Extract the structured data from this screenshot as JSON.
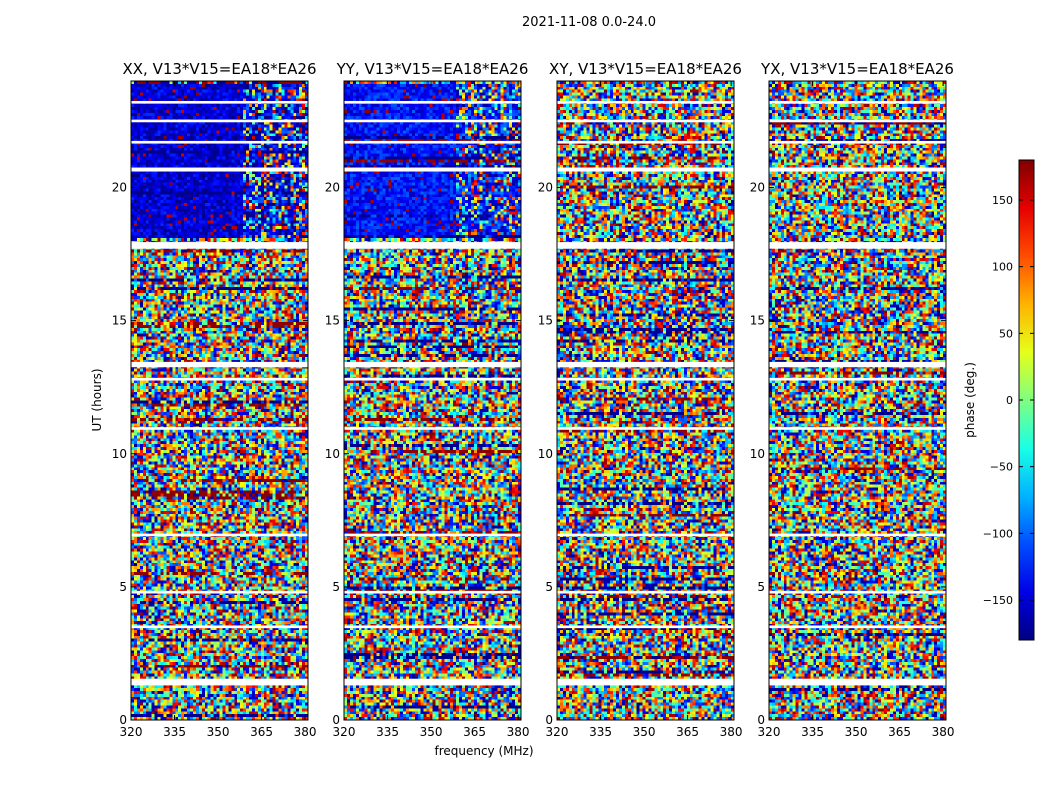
{
  "figure": {
    "suptitle": "2021-11-08 0.0-24.0"
  },
  "chart_data": {
    "type": "heatmap",
    "xlabel": "frequency (MHz)",
    "ylabel": "UT (hours)",
    "xlim": [
      320,
      381
    ],
    "ylim": [
      0,
      24
    ],
    "xticks": [
      320,
      335,
      350,
      365,
      380
    ],
    "yticks": [
      0,
      5,
      10,
      15,
      20
    ],
    "panels": [
      {
        "title": "XX, V13*V15=EA18*EA26",
        "pol": "XX",
        "coherent_phase_deg": -150,
        "coherent_ut_range": [
          18.1,
          23.9
        ]
      },
      {
        "title": "YY, V13*V15=EA18*EA26",
        "pol": "YY",
        "coherent_phase_deg": -130,
        "coherent_ut_range": [
          18.1,
          23.9
        ]
      },
      {
        "title": "XY, V13*V15=EA18*EA26",
        "pol": "XY"
      },
      {
        "title": "YX, V13*V15=EA18*EA26",
        "pol": "YX"
      }
    ],
    "flagged_ut_ranges": [
      [
        1.3,
        1.55
      ],
      [
        3.45,
        3.55
      ],
      [
        4.75,
        4.85
      ],
      [
        6.9,
        7.0
      ],
      [
        10.9,
        11.0
      ],
      [
        12.75,
        12.85
      ],
      [
        13.25,
        13.45
      ],
      [
        17.7,
        17.95
      ],
      [
        20.6,
        20.75
      ],
      [
        21.65,
        21.75
      ],
      [
        22.45,
        22.55
      ],
      [
        23.15,
        23.25
      ]
    ],
    "colorbar": {
      "label": "phase (deg.)",
      "range": [
        -180,
        180
      ],
      "ticks": [
        -150,
        -100,
        -50,
        0,
        50,
        100,
        150
      ],
      "tick_labels": [
        "−150",
        "−100",
        "−50",
        "0",
        "50",
        "100",
        "150"
      ],
      "colormap": "jet"
    }
  }
}
